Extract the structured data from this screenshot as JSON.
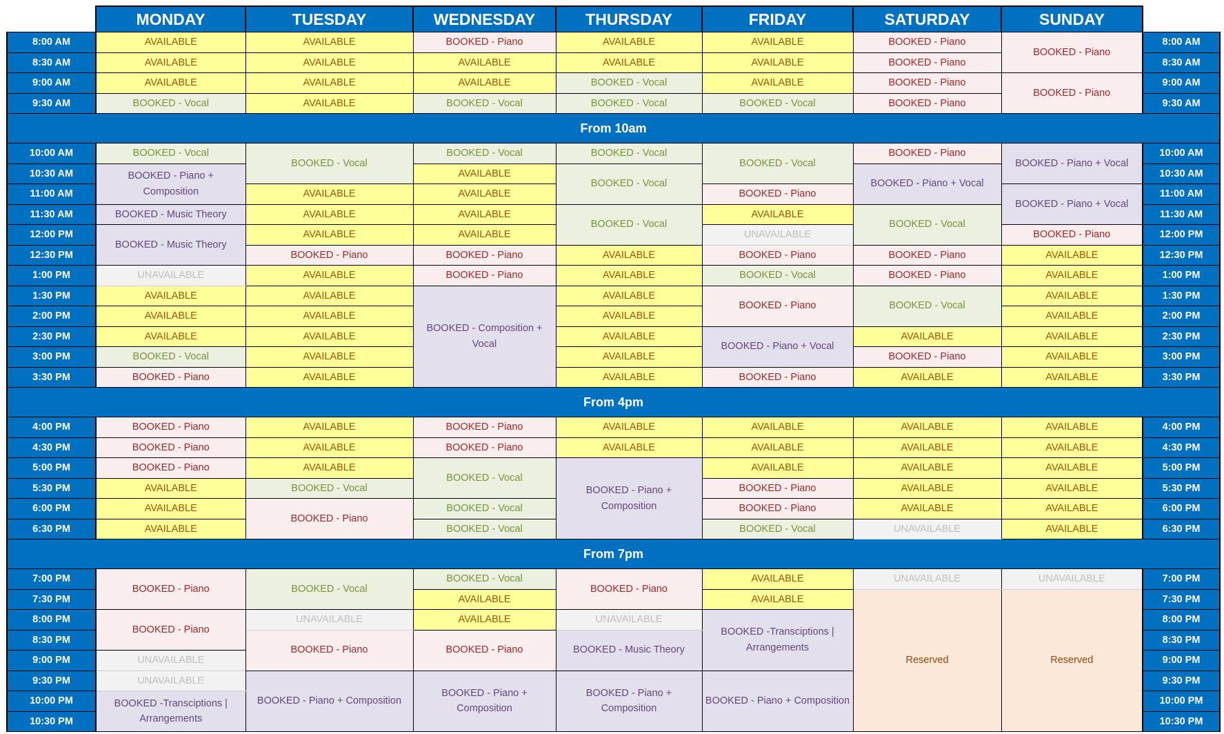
{
  "colors": {
    "header_blue": "#0070c0",
    "available": "#ffff99",
    "vocal": "#ebf1de",
    "piano": "#f9eded",
    "combo": "#e4dfec",
    "unavailable": "#f2f2f2",
    "reserved": "#fce8d9"
  },
  "days": [
    "MONDAY",
    "TUESDAY",
    "WEDNESDAY",
    "THURSDAY",
    "FRIDAY",
    "SATURDAY",
    "SUNDAY"
  ],
  "sections": [
    {
      "band": null,
      "times": [
        "8:00 AM",
        "8:30 AM",
        "9:00 AM",
        "9:30 AM"
      ],
      "columns": [
        [
          [
            "AVAILABLE",
            1,
            "available"
          ],
          [
            "AVAILABLE",
            1,
            "available"
          ],
          [
            "AVAILABLE",
            1,
            "available"
          ],
          [
            "BOOKED - Vocal",
            1,
            "vocal"
          ]
        ],
        [
          [
            "AVAILABLE",
            1,
            "available"
          ],
          [
            "AVAILABLE",
            1,
            "available"
          ],
          [
            "AVAILABLE",
            1,
            "available"
          ],
          [
            "AVAILABLE",
            1,
            "available"
          ]
        ],
        [
          [
            "BOOKED - Piano",
            1,
            "piano"
          ],
          [
            "AVAILABLE",
            1,
            "available"
          ],
          [
            "AVAILABLE",
            1,
            "available"
          ],
          [
            "BOOKED - Vocal",
            1,
            "vocal"
          ]
        ],
        [
          [
            "AVAILABLE",
            1,
            "available"
          ],
          [
            "AVAILABLE",
            1,
            "available"
          ],
          [
            "BOOKED - Vocal",
            1,
            "vocal"
          ],
          [
            "BOOKED - Vocal",
            1,
            "vocal"
          ]
        ],
        [
          [
            "AVAILABLE",
            1,
            "available"
          ],
          [
            "AVAILABLE",
            1,
            "available"
          ],
          [
            "AVAILABLE",
            1,
            "available"
          ],
          [
            "BOOKED - Vocal",
            1,
            "vocal"
          ]
        ],
        [
          [
            "BOOKED - Piano",
            1,
            "piano"
          ],
          [
            "BOOKED - Piano",
            1,
            "piano"
          ],
          [
            "BOOKED - Piano",
            1,
            "piano"
          ],
          [
            "BOOKED - Piano",
            1,
            "piano"
          ]
        ],
        [
          [
            "BOOKED - Piano",
            2,
            "piano"
          ],
          [
            "BOOKED - Piano",
            2,
            "piano"
          ]
        ]
      ]
    },
    {
      "band": "From 10am",
      "times": [
        "10:00 AM",
        "10:30 AM",
        "11:00 AM",
        "11:30 AM",
        "12:00 PM",
        "12:30 PM",
        "1:00 PM",
        "1:30 PM",
        "2:00 PM",
        "2:30 PM",
        "3:00 PM",
        "3:30 PM"
      ],
      "columns": [
        [
          [
            "BOOKED - Vocal",
            1,
            "vocal"
          ],
          [
            "BOOKED - Piano + Composition",
            2,
            "combo"
          ],
          [
            "BOOKED - Music Theory",
            1,
            "combo"
          ],
          [
            "BOOKED - Music Theory",
            2,
            "combo"
          ],
          [
            "UNAVAILABLE",
            1,
            "unavailable"
          ],
          [
            "AVAILABLE",
            1,
            "available"
          ],
          [
            "AVAILABLE",
            1,
            "available"
          ],
          [
            "AVAILABLE",
            1,
            "available"
          ],
          [
            "BOOKED - Vocal",
            1,
            "vocal"
          ],
          [
            "BOOKED - Piano",
            1,
            "piano"
          ]
        ],
        [
          [
            "BOOKED - Vocal",
            2,
            "vocal"
          ],
          [
            "AVAILABLE",
            1,
            "available"
          ],
          [
            "AVAILABLE",
            1,
            "available"
          ],
          [
            "AVAILABLE",
            1,
            "available"
          ],
          [
            "BOOKED - Piano",
            1,
            "piano"
          ],
          [
            "AVAILABLE",
            1,
            "available"
          ],
          [
            "AVAILABLE",
            1,
            "available"
          ],
          [
            "AVAILABLE",
            1,
            "available"
          ],
          [
            "AVAILABLE",
            1,
            "available"
          ],
          [
            "AVAILABLE",
            1,
            "available"
          ],
          [
            "AVAILABLE",
            1,
            "available"
          ]
        ],
        [
          [
            "BOOKED - Vocal",
            1,
            "vocal"
          ],
          [
            "AVAILABLE",
            1,
            "available"
          ],
          [
            "AVAILABLE",
            1,
            "available"
          ],
          [
            "AVAILABLE",
            1,
            "available"
          ],
          [
            "AVAILABLE",
            1,
            "available"
          ],
          [
            "BOOKED - Piano",
            1,
            "piano"
          ],
          [
            "BOOKED - Piano",
            1,
            "piano"
          ],
          [
            "BOOKED - Composition + Vocal",
            5,
            "combo"
          ]
        ],
        [
          [
            "BOOKED - Vocal",
            1,
            "vocal"
          ],
          [
            "BOOKED - Vocal",
            2,
            "vocal"
          ],
          [
            "BOOKED - Vocal",
            2,
            "vocal"
          ],
          [
            "AVAILABLE",
            1,
            "available"
          ],
          [
            "AVAILABLE",
            1,
            "available"
          ],
          [
            "AVAILABLE",
            1,
            "available"
          ],
          [
            "AVAILABLE",
            1,
            "available"
          ],
          [
            "AVAILABLE",
            1,
            "available"
          ],
          [
            "AVAILABLE",
            1,
            "available"
          ],
          [
            "AVAILABLE",
            1,
            "available"
          ]
        ],
        [
          [
            "BOOKED - Vocal",
            2,
            "vocal"
          ],
          [
            "BOOKED - Piano",
            1,
            "piano"
          ],
          [
            "AVAILABLE",
            1,
            "available"
          ],
          [
            "UNAVAILABLE",
            1,
            "unavailable"
          ],
          [
            "BOOKED - Piano",
            1,
            "piano"
          ],
          [
            "BOOKED - Vocal",
            1,
            "vocal"
          ],
          [
            "BOOKED - Piano",
            2,
            "piano"
          ],
          [
            "BOOKED - Piano + Vocal",
            2,
            "combo"
          ],
          [
            "BOOKED - Piano",
            1,
            "piano"
          ]
        ],
        [
          [
            "BOOKED - Piano",
            1,
            "piano"
          ],
          [
            "BOOKED - Piano + Vocal",
            2,
            "combo"
          ],
          [
            "BOOKED - Vocal",
            2,
            "vocal"
          ],
          [
            "BOOKED - Piano",
            1,
            "piano"
          ],
          [
            "BOOKED - Piano",
            1,
            "piano"
          ],
          [
            "BOOKED - Vocal",
            2,
            "vocal"
          ],
          [
            "AVAILABLE",
            1,
            "available"
          ],
          [
            "BOOKED - Piano",
            1,
            "piano"
          ],
          [
            "AVAILABLE",
            1,
            "available"
          ]
        ],
        [
          [
            "BOOKED - Piano + Vocal",
            2,
            "combo"
          ],
          [
            "BOOKED - Piano + Vocal",
            2,
            "combo"
          ],
          [
            "BOOKED - Piano",
            1,
            "piano"
          ],
          [
            "AVAILABLE",
            1,
            "available"
          ],
          [
            "AVAILABLE",
            1,
            "available"
          ],
          [
            "AVAILABLE",
            1,
            "available"
          ],
          [
            "AVAILABLE",
            1,
            "available"
          ],
          [
            "AVAILABLE",
            1,
            "available"
          ],
          [
            "AVAILABLE",
            1,
            "available"
          ],
          [
            "AVAILABLE",
            1,
            "available"
          ]
        ]
      ]
    },
    {
      "band": "From 4pm",
      "times": [
        "4:00 PM",
        "4:30 PM",
        "5:00 PM",
        "5:30 PM",
        "6:00 PM",
        "6:30 PM"
      ],
      "columns": [
        [
          [
            "BOOKED - Piano",
            1,
            "piano"
          ],
          [
            "BOOKED - Piano",
            1,
            "piano"
          ],
          [
            "BOOKED - Piano",
            1,
            "piano"
          ],
          [
            "AVAILABLE",
            1,
            "available"
          ],
          [
            "AVAILABLE",
            1,
            "available"
          ],
          [
            "AVAILABLE",
            1,
            "available"
          ]
        ],
        [
          [
            "AVAILABLE",
            1,
            "available"
          ],
          [
            "AVAILABLE",
            1,
            "available"
          ],
          [
            "AVAILABLE",
            1,
            "available"
          ],
          [
            "BOOKED - Vocal",
            1,
            "vocal"
          ],
          [
            "BOOKED - Piano",
            2,
            "piano"
          ]
        ],
        [
          [
            "BOOKED - Piano",
            1,
            "piano"
          ],
          [
            "BOOKED - Piano",
            1,
            "piano"
          ],
          [
            "BOOKED - Vocal",
            2,
            "vocal"
          ],
          [
            "BOOKED - Vocal",
            1,
            "vocal"
          ],
          [
            "BOOKED - Vocal",
            1,
            "vocal"
          ]
        ],
        [
          [
            "AVAILABLE",
            1,
            "available"
          ],
          [
            "AVAILABLE",
            1,
            "available"
          ],
          [
            "BOOKED - Piano + Composition",
            4,
            "combo"
          ]
        ],
        [
          [
            "AVAILABLE",
            1,
            "available"
          ],
          [
            "AVAILABLE",
            1,
            "available"
          ],
          [
            "AVAILABLE",
            1,
            "available"
          ],
          [
            "BOOKED - Piano",
            1,
            "piano"
          ],
          [
            "BOOKED - Piano",
            1,
            "piano"
          ],
          [
            "BOOKED - Vocal",
            1,
            "vocal"
          ]
        ],
        [
          [
            "AVAILABLE",
            1,
            "available"
          ],
          [
            "AVAILABLE",
            1,
            "available"
          ],
          [
            "AVAILABLE",
            1,
            "available"
          ],
          [
            "AVAILABLE",
            1,
            "available"
          ],
          [
            "AVAILABLE",
            1,
            "available"
          ],
          [
            "UNAVAILABLE",
            1,
            "unavailable"
          ]
        ],
        [
          [
            "AVAILABLE",
            1,
            "available"
          ],
          [
            "AVAILABLE",
            1,
            "available"
          ],
          [
            "AVAILABLE",
            1,
            "available"
          ],
          [
            "AVAILABLE",
            1,
            "available"
          ],
          [
            "AVAILABLE",
            1,
            "available"
          ],
          [
            "AVAILABLE",
            1,
            "available"
          ]
        ]
      ]
    },
    {
      "band": "From 7pm",
      "times": [
        "7:00 PM",
        "7:30 PM",
        "8:00 PM",
        "8:30 PM",
        "9:00 PM",
        "9:30 PM",
        "10:00 PM",
        "10:30 PM"
      ],
      "columns": [
        [
          [
            "BOOKED - Piano",
            2,
            "piano"
          ],
          [
            "BOOKED - Piano",
            2,
            "piano"
          ],
          [
            "UNAVAILABLE",
            1,
            "unavailable"
          ],
          [
            "UNAVAILABLE",
            1,
            "unavailable"
          ],
          [
            "BOOKED -Transciptions | Arrangements",
            2,
            "combo"
          ]
        ],
        [
          [
            "BOOKED - Vocal",
            2,
            "vocal"
          ],
          [
            "UNAVAILABLE",
            1,
            "unavailable"
          ],
          [
            "BOOKED - Piano",
            2,
            "piano"
          ],
          [
            "BOOKED - Piano + Composition",
            3,
            "combo"
          ]
        ],
        [
          [
            "BOOKED - Vocal",
            1,
            "vocal"
          ],
          [
            "AVAILABLE",
            1,
            "available"
          ],
          [
            "AVAILABLE",
            1,
            "available"
          ],
          [
            "BOOKED - Piano",
            2,
            "piano"
          ],
          [
            "BOOKED - Piano + Composition",
            3,
            "combo"
          ]
        ],
        [
          [
            "BOOKED - Piano",
            2,
            "piano"
          ],
          [
            "UNAVAILABLE",
            1,
            "unavailable"
          ],
          [
            "BOOKED - Music Theory",
            2,
            "combo"
          ],
          [
            "BOOKED - Piano + Composition",
            3,
            "combo"
          ]
        ],
        [
          [
            "AVAILABLE",
            1,
            "available"
          ],
          [
            "AVAILABLE",
            1,
            "available"
          ],
          [
            "BOOKED -Transciptions | Arrangements",
            3,
            "combo"
          ],
          [
            "BOOKED - Piano + Composition",
            3,
            "combo"
          ]
        ],
        [
          [
            "UNAVAILABLE",
            1,
            "unavailable"
          ],
          [
            "Reserved",
            7,
            "reserved"
          ]
        ],
        [
          [
            "UNAVAILABLE",
            1,
            "unavailable"
          ],
          [
            "Reserved",
            7,
            "reserved"
          ]
        ]
      ]
    }
  ]
}
